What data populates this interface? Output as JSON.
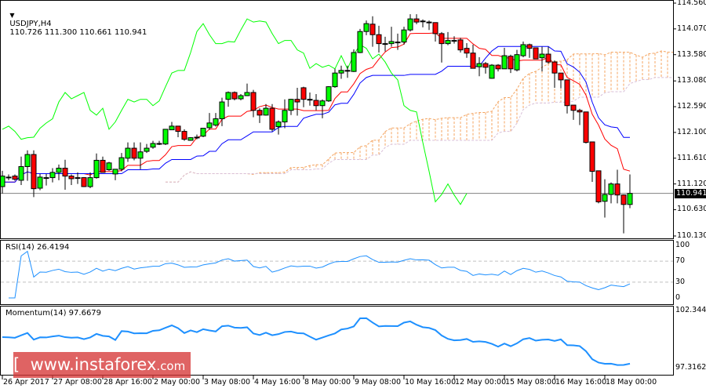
{
  "header": {
    "symbol": "USDJPY,H4",
    "ohlc": "110.726 111.300 110.661 110.941",
    "menu_icon": "triangle-down-icon"
  },
  "price_axis": {
    "ticks": [
      "114.560",
      "114.070",
      "113.580",
      "113.080",
      "112.590",
      "112.100",
      "111.610",
      "111.120",
      "110.630",
      "110.130"
    ],
    "current": "110.941",
    "range": [
      110.13,
      114.56
    ]
  },
  "rsi": {
    "label": "RSI(14) 26.4194",
    "ticks": [
      "100",
      "70",
      "30",
      "0"
    ],
    "levels": [
      70,
      30
    ],
    "color": "#1e90ff"
  },
  "momentum": {
    "label": "Momentum(14) 97.6679",
    "ticks": [
      "102.3447",
      "97.3162"
    ],
    "range": [
      97.3162,
      102.3447
    ],
    "color": "#1e90ff"
  },
  "time_axis": [
    "26 Apr 2017",
    "27 Apr 08:00",
    "28 Apr 16:00",
    "2 May 00:00",
    "3 May 08:00",
    "4 May 16:00",
    "8 May 00:00",
    "9 May 08:00",
    "10 May 16:00",
    "12 May 00:00",
    "15 May 08:00",
    "16 May 16:00",
    "18 May 00:00"
  ],
  "watermark": {
    "bracket_left": "[",
    "text": "www.instaforex",
    "domain": ".com",
    "bracket_right": "]"
  },
  "colors": {
    "bull": "#00ff00",
    "bear": "#ff0000",
    "tenkan": "#ff0000",
    "kijun": "#0000ff",
    "chikou": "#00ff00",
    "span_a": "#f4a460",
    "span_b": "#d8bfd8"
  },
  "chart_data": {
    "type": "candlestick",
    "indicators": [
      "Ichimoku",
      "RSI(14)",
      "Momentum(14)"
    ],
    "ohlc": [
      [
        111.07,
        111.37,
        110.94,
        111.27
      ],
      [
        111.25,
        111.3,
        111.19,
        111.25
      ],
      [
        111.27,
        111.3,
        111.18,
        111.21
      ],
      [
        111.19,
        111.64,
        111.1,
        111.45
      ],
      [
        111.45,
        111.76,
        111.18,
        111.68
      ],
      [
        111.68,
        111.76,
        110.87,
        111.03
      ],
      [
        111.04,
        111.31,
        111.0,
        111.25
      ],
      [
        111.24,
        111.31,
        111.09,
        111.24
      ],
      [
        111.24,
        111.42,
        111.15,
        111.34
      ],
      [
        111.34,
        111.49,
        111.19,
        111.42
      ],
      [
        111.42,
        111.58,
        111.01,
        111.27
      ],
      [
        111.27,
        111.3,
        111.1,
        111.22
      ],
      [
        111.24,
        111.34,
        111.12,
        111.24
      ],
      [
        111.24,
        111.25,
        111.06,
        111.07
      ],
      [
        111.07,
        111.34,
        111.04,
        111.24
      ],
      [
        111.24,
        111.7,
        111.22,
        111.57
      ],
      [
        111.57,
        111.64,
        111.34,
        111.34
      ],
      [
        111.39,
        111.54,
        111.37,
        111.52
      ],
      [
        111.31,
        111.4,
        111.19,
        111.4
      ],
      [
        111.4,
        111.71,
        111.36,
        111.62
      ],
      [
        111.61,
        111.91,
        111.54,
        111.8
      ],
      [
        111.8,
        111.91,
        111.57,
        111.61
      ],
      [
        111.61,
        111.91,
        111.4,
        111.73
      ],
      [
        111.74,
        111.88,
        111.71,
        111.8
      ],
      [
        111.82,
        111.94,
        111.79,
        111.89
      ],
      [
        111.89,
        111.94,
        111.86,
        111.89
      ],
      [
        111.88,
        112.16,
        111.86,
        112.16
      ],
      [
        112.15,
        112.3,
        112.15,
        112.22
      ],
      [
        112.22,
        112.22,
        112.01,
        112.12
      ],
      [
        112.12,
        112.16,
        111.94,
        111.97
      ],
      [
        111.95,
        112.01,
        111.94,
        112.0
      ],
      [
        112.01,
        112.06,
        111.97,
        112.01
      ],
      [
        112.03,
        112.18,
        112.01,
        112.18
      ],
      [
        112.19,
        112.47,
        112.15,
        112.28
      ],
      [
        112.24,
        112.47,
        112.21,
        112.36
      ],
      [
        112.36,
        112.76,
        112.22,
        112.68
      ],
      [
        112.73,
        112.88,
        112.59,
        112.86
      ],
      [
        112.86,
        112.88,
        112.71,
        112.74
      ],
      [
        112.74,
        112.83,
        112.71,
        112.8
      ],
      [
        112.8,
        113.03,
        112.79,
        112.86
      ],
      [
        112.86,
        112.91,
        112.39,
        112.52
      ],
      [
        112.52,
        112.56,
        112.28,
        112.43
      ],
      [
        112.43,
        112.64,
        112.42,
        112.56
      ],
      [
        112.56,
        112.64,
        112.12,
        112.16
      ],
      [
        112.21,
        112.33,
        112.06,
        112.3
      ],
      [
        112.3,
        112.73,
        112.18,
        112.52
      ],
      [
        112.52,
        112.74,
        112.43,
        112.73
      ],
      [
        112.73,
        112.95,
        112.42,
        112.68
      ],
      [
        112.95,
        112.97,
        112.58,
        112.73
      ],
      [
        112.73,
        112.86,
        112.61,
        112.73
      ],
      [
        112.71,
        112.83,
        112.52,
        112.61
      ],
      [
        112.61,
        112.73,
        112.37,
        112.7
      ],
      [
        112.7,
        112.98,
        112.68,
        112.97
      ],
      [
        112.97,
        113.31,
        112.95,
        113.23
      ],
      [
        113.23,
        113.37,
        113.12,
        113.28
      ],
      [
        113.28,
        113.37,
        113.14,
        113.28
      ],
      [
        113.26,
        113.68,
        113.25,
        113.62
      ],
      [
        113.62,
        114.07,
        113.61,
        114.02
      ],
      [
        114.02,
        114.23,
        113.95,
        114.17
      ],
      [
        114.16,
        114.31,
        113.73,
        113.96
      ],
      [
        113.96,
        114.13,
        113.62,
        113.79
      ],
      [
        113.79,
        113.92,
        113.64,
        113.79
      ],
      [
        113.79,
        114.11,
        113.73,
        113.83
      ],
      [
        113.82,
        113.98,
        113.67,
        113.82
      ],
      [
        113.82,
        114.11,
        113.77,
        114.05
      ],
      [
        114.05,
        114.35,
        114.02,
        114.26
      ],
      [
        114.26,
        114.35,
        114.16,
        114.2
      ],
      [
        114.22,
        114.25,
        114.1,
        114.22
      ],
      [
        114.2,
        114.23,
        114.05,
        114.2
      ],
      [
        114.19,
        114.19,
        113.83,
        113.98
      ],
      [
        113.98,
        114.01,
        113.43,
        113.79
      ],
      [
        113.79,
        114.01,
        113.76,
        113.85
      ],
      [
        113.85,
        113.93,
        113.79,
        113.85
      ],
      [
        113.86,
        113.9,
        113.62,
        113.67
      ],
      [
        113.7,
        113.8,
        113.52,
        113.61
      ],
      [
        113.61,
        113.77,
        113.32,
        113.32
      ],
      [
        113.35,
        113.53,
        113.17,
        113.41
      ],
      [
        113.41,
        113.44,
        113.22,
        113.34
      ],
      [
        113.13,
        113.4,
        113.12,
        113.38
      ],
      [
        113.38,
        113.4,
        113.26,
        113.31
      ],
      [
        113.31,
        113.71,
        113.31,
        113.56
      ],
      [
        113.55,
        113.58,
        113.23,
        113.31
      ],
      [
        113.29,
        113.67,
        113.26,
        113.58
      ],
      [
        113.56,
        113.83,
        113.53,
        113.77
      ],
      [
        113.77,
        113.79,
        113.52,
        113.7
      ],
      [
        113.71,
        113.71,
        113.5,
        113.5
      ],
      [
        113.52,
        113.73,
        113.26,
        113.59
      ],
      [
        113.59,
        113.73,
        113.41,
        113.44
      ],
      [
        113.44,
        113.47,
        112.95,
        113.23
      ],
      [
        113.23,
        113.23,
        112.94,
        113.1
      ],
      [
        113.1,
        113.1,
        112.46,
        112.61
      ],
      [
        112.62,
        112.62,
        112.34,
        112.52
      ],
      [
        112.52,
        112.55,
        112.24,
        112.49
      ],
      [
        112.49,
        112.49,
        111.89,
        111.91
      ],
      [
        111.92,
        111.92,
        111.16,
        111.36
      ],
      [
        111.37,
        111.37,
        110.75,
        110.78
      ],
      [
        110.79,
        111.21,
        110.48,
        110.92
      ],
      [
        110.92,
        111.15,
        110.75,
        111.12
      ],
      [
        111.12,
        111.39,
        110.75,
        110.91
      ],
      [
        110.91,
        110.92,
        110.18,
        110.73
      ],
      [
        110.73,
        111.3,
        110.66,
        110.94
      ]
    ]
  }
}
